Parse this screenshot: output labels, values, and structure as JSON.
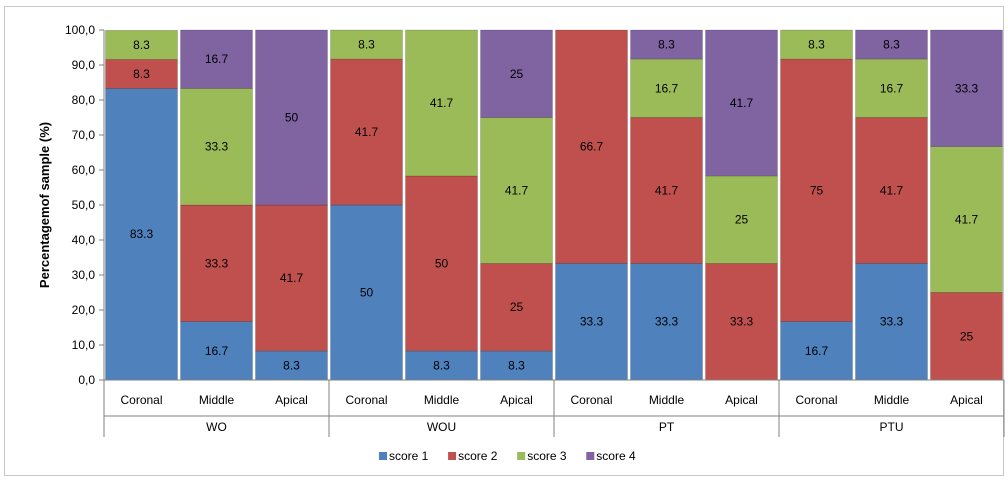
{
  "chart_data": {
    "type": "bar",
    "stacked": true,
    "title": "",
    "xlabel": "",
    "ylabel": "Percentagemof sample (%)",
    "ylim": [
      0,
      100
    ],
    "ytick_step": 10,
    "ytick_format": "comma-1-decimal",
    "grid": false,
    "legend_position": "bottom",
    "groups": [
      "WO",
      "WOU",
      "PT",
      "PTU"
    ],
    "subcategories": [
      "Coronal",
      "Middle",
      "Apical"
    ],
    "series": [
      {
        "name": "score 1",
        "color": "#4f81bd",
        "values": [
          83.3,
          16.7,
          8.3,
          50,
          8.3,
          8.3,
          33.3,
          33.3,
          0,
          16.7,
          33.3,
          0
        ],
        "labels": [
          "83.3",
          "16.7",
          "8.3",
          "50",
          "8.3",
          "8.3",
          "33.3",
          "33.3",
          "",
          "16.7",
          "33.3",
          ""
        ]
      },
      {
        "name": "score 2",
        "color": "#c0504d",
        "values": [
          8.3,
          33.3,
          41.7,
          41.7,
          50,
          25,
          66.7,
          41.7,
          33.3,
          75,
          41.7,
          25
        ],
        "labels": [
          "8.3",
          "33.3",
          "41.7",
          "41.7",
          "50",
          "25",
          "66.7",
          "41.7",
          "33.3",
          "75",
          "41.7",
          "25"
        ]
      },
      {
        "name": "score 3",
        "color": "#9bbb59",
        "values": [
          8.3,
          33.3,
          0,
          8.3,
          41.7,
          41.7,
          0,
          16.7,
          25,
          8.3,
          16.7,
          41.7
        ],
        "labels": [
          "8.3",
          "33.3",
          "",
          "8.3",
          "41.7",
          "41.7",
          "",
          "16.7",
          "25",
          "8.3",
          "16.7",
          "41.7"
        ]
      },
      {
        "name": "score 4",
        "color": "#8064a2",
        "values": [
          0,
          16.7,
          50,
          0,
          0,
          25,
          0,
          8.3,
          41.7,
          0,
          8.3,
          33.3
        ],
        "labels": [
          "",
          "16.7",
          "50",
          "",
          "",
          "25",
          "",
          "8.3",
          "41.7",
          "",
          "8.3",
          "33.3"
        ]
      }
    ]
  }
}
